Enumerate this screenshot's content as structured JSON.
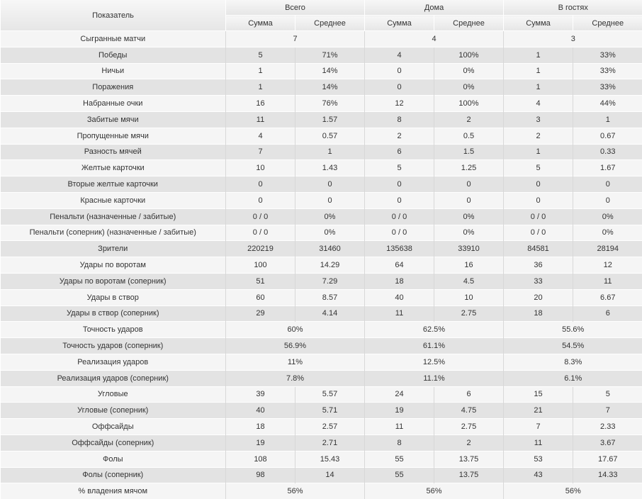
{
  "header": {
    "label": "Показатель",
    "groups": [
      "Всего",
      "Дома",
      "В гостях"
    ],
    "sub": [
      "Сумма",
      "Среднее"
    ]
  },
  "rows": [
    {
      "label": "Сыгранные матчи",
      "merged": true,
      "values": [
        "7",
        "4",
        "3"
      ]
    },
    {
      "label": "Победы",
      "values": [
        "5",
        "71%",
        "4",
        "100%",
        "1",
        "33%"
      ]
    },
    {
      "label": "Ничьи",
      "values": [
        "1",
        "14%",
        "0",
        "0%",
        "1",
        "33%"
      ]
    },
    {
      "label": "Поражения",
      "values": [
        "1",
        "14%",
        "0",
        "0%",
        "1",
        "33%"
      ]
    },
    {
      "label": "Набранные очки",
      "values": [
        "16",
        "76%",
        "12",
        "100%",
        "4",
        "44%"
      ]
    },
    {
      "label": "Забитые мячи",
      "values": [
        "11",
        "1.57",
        "8",
        "2",
        "3",
        "1"
      ]
    },
    {
      "label": "Пропущенные мячи",
      "values": [
        "4",
        "0.57",
        "2",
        "0.5",
        "2",
        "0.67"
      ]
    },
    {
      "label": "Разность мячей",
      "values": [
        "7",
        "1",
        "6",
        "1.5",
        "1",
        "0.33"
      ]
    },
    {
      "label": "Желтые карточки",
      "values": [
        "10",
        "1.43",
        "5",
        "1.25",
        "5",
        "1.67"
      ]
    },
    {
      "label": "Вторые желтые карточки",
      "values": [
        "0",
        "0",
        "0",
        "0",
        "0",
        "0"
      ]
    },
    {
      "label": "Красные карточки",
      "values": [
        "0",
        "0",
        "0",
        "0",
        "0",
        "0"
      ]
    },
    {
      "label": "Пенальти (назначенные / забитые)",
      "values": [
        "0 / 0",
        "0%",
        "0 / 0",
        "0%",
        "0 / 0",
        "0%"
      ]
    },
    {
      "label": "Пенальти (соперник) (назначенные / забитые)",
      "values": [
        "0 / 0",
        "0%",
        "0 / 0",
        "0%",
        "0 / 0",
        "0%"
      ]
    },
    {
      "label": "Зрители",
      "values": [
        "220219",
        "31460",
        "135638",
        "33910",
        "84581",
        "28194"
      ]
    },
    {
      "label": "Удары по воротам",
      "values": [
        "100",
        "14.29",
        "64",
        "16",
        "36",
        "12"
      ]
    },
    {
      "label": "Удары по воротам (соперник)",
      "values": [
        "51",
        "7.29",
        "18",
        "4.5",
        "33",
        "11"
      ]
    },
    {
      "label": "Удары в створ",
      "values": [
        "60",
        "8.57",
        "40",
        "10",
        "20",
        "6.67"
      ]
    },
    {
      "label": "Удары в створ (соперник)",
      "values": [
        "29",
        "4.14",
        "11",
        "2.75",
        "18",
        "6"
      ]
    },
    {
      "label": "Точность ударов",
      "merged": true,
      "values": [
        "60%",
        "62.5%",
        "55.6%"
      ]
    },
    {
      "label": "Точность ударов (соперник)",
      "merged": true,
      "values": [
        "56.9%",
        "61.1%",
        "54.5%"
      ]
    },
    {
      "label": "Реализация ударов",
      "merged": true,
      "values": [
        "11%",
        "12.5%",
        "8.3%"
      ]
    },
    {
      "label": "Реализация ударов (соперник)",
      "merged": true,
      "values": [
        "7.8%",
        "11.1%",
        "6.1%"
      ]
    },
    {
      "label": "Угловые",
      "values": [
        "39",
        "5.57",
        "24",
        "6",
        "15",
        "5"
      ]
    },
    {
      "label": "Угловые (соперник)",
      "values": [
        "40",
        "5.71",
        "19",
        "4.75",
        "21",
        "7"
      ]
    },
    {
      "label": "Оффсайды",
      "values": [
        "18",
        "2.57",
        "11",
        "2.75",
        "7",
        "2.33"
      ]
    },
    {
      "label": "Оффсайды (соперник)",
      "values": [
        "19",
        "2.71",
        "8",
        "2",
        "11",
        "3.67"
      ]
    },
    {
      "label": "Фолы",
      "values": [
        "108",
        "15.43",
        "55",
        "13.75",
        "53",
        "17.67"
      ]
    },
    {
      "label": "Фолы (соперник)",
      "values": [
        "98",
        "14",
        "55",
        "13.75",
        "43",
        "14.33"
      ]
    },
    {
      "label": "% владения мячом",
      "merged": true,
      "values": [
        "56%",
        "56%",
        "56%"
      ]
    }
  ]
}
